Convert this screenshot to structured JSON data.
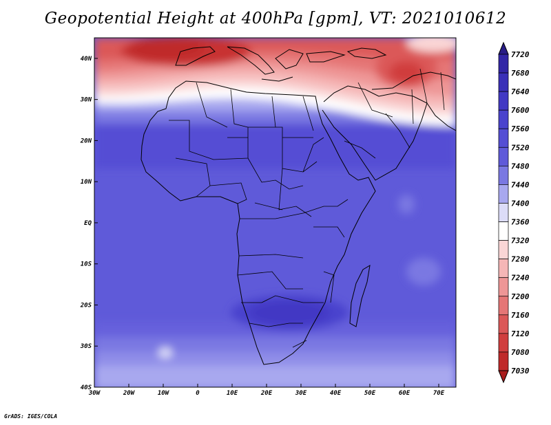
{
  "title": "Geopotential Height at 400hPa [gpm], VT: 2021010612",
  "credit": "GrADS: IGES/COLA",
  "map": {
    "lat_labels": [
      "40N",
      "30N",
      "20N",
      "10N",
      "EQ",
      "10S",
      "20S",
      "30S",
      "40S"
    ],
    "lon_labels": [
      "30W",
      "20W",
      "10W",
      "0",
      "10E",
      "20E",
      "30E",
      "40E",
      "50E",
      "60E",
      "70E"
    ],
    "lat_range": [
      -40,
      45
    ],
    "lon_range": [
      -30,
      75
    ]
  },
  "colorbar": {
    "levels": [
      "7720",
      "7680",
      "7640",
      "7600",
      "7560",
      "7520",
      "7480",
      "7440",
      "7400",
      "7360",
      "7320",
      "7280",
      "7240",
      "7200",
      "7160",
      "7120",
      "7080",
      "7030"
    ],
    "colors": [
      "#291d87",
      "#3226a6",
      "#3a30b8",
      "#4239c4",
      "#4a43cd",
      "#544ed4",
      "#5f5ad9",
      "#7a78e2",
      "#a8a8ef",
      "#dcdcf8",
      "#ffffff",
      "#fad6d6",
      "#f5b6b6",
      "#ee9696",
      "#e57676",
      "#db5858",
      "#d03e3e",
      "#bf2929",
      "#a91c1c"
    ]
  },
  "chart_data": {
    "type": "heatmap",
    "title": "Geopotential Height at 400hPa [gpm], VT: 2021010612",
    "variable": "Geopotential Height at 400hPa",
    "units": "gpm",
    "valid_time": "2021010612",
    "x_axis": {
      "labels": [
        "30W",
        "20W",
        "10W",
        "0",
        "10E",
        "20E",
        "30E",
        "40E",
        "50E",
        "60E",
        "70E"
      ],
      "range": [
        -30,
        75
      ]
    },
    "y_axis": {
      "labels": [
        "40S",
        "30S",
        "20S",
        "10S",
        "EQ",
        "10N",
        "20N",
        "30N",
        "40N"
      ],
      "range": [
        -40,
        45
      ]
    },
    "colorbar_levels": [
      7030,
      7080,
      7120,
      7160,
      7200,
      7240,
      7280,
      7320,
      7360,
      7400,
      7440,
      7480,
      7520,
      7560,
      7600,
      7640,
      7680,
      7720
    ],
    "fields": [
      {
        "region": "Mediterranean / North Africa coast (35-45N)",
        "value_range": [
          7080,
          7240
        ]
      },
      {
        "region": "Sahara (20-28N)",
        "value_range": [
          7360,
          7480
        ]
      },
      {
        "region": "Tropics (10N-20S)",
        "value_range": [
          7520,
          7560
        ]
      },
      {
        "region": "Southern Africa (18-25S, 20-35E)",
        "value_range": [
          7600,
          7640
        ]
      },
      {
        "region": "Southern Ocean (30-40S)",
        "value_range": [
          7440,
          7520
        ]
      }
    ]
  }
}
